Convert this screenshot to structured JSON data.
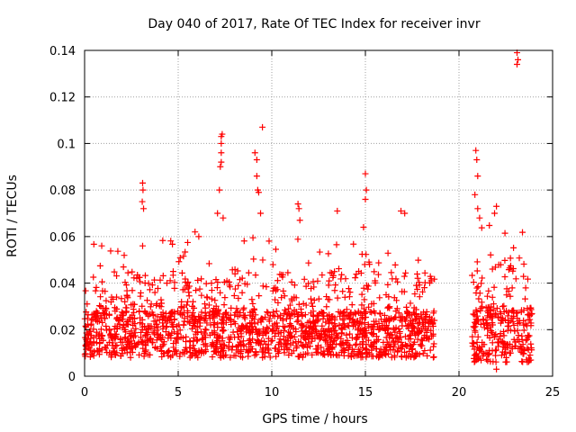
{
  "chart_data": {
    "type": "scatter",
    "title": "Day 040 of 2017, Rate Of TEC Index for receiver invr",
    "xlabel": "GPS time / hours",
    "ylabel": "ROTI / TECUs",
    "xlim": [
      0,
      25
    ],
    "ylim": [
      0,
      0.14
    ],
    "x_ticks": [
      0,
      5,
      10,
      15,
      20,
      25
    ],
    "x_tick_labels": [
      "0",
      "5",
      "10",
      "15",
      "20",
      "25"
    ],
    "y_ticks": [
      0,
      0.02,
      0.04,
      0.06,
      0.08,
      0.1,
      0.12,
      0.14
    ],
    "y_tick_labels": [
      "0",
      "0.02",
      "0.04",
      "0.06",
      "0.08",
      "0.1",
      "0.12",
      "0.14"
    ],
    "grid": true,
    "marker": "+",
    "series": [
      {
        "name": "ROTI",
        "color": "#ff0000",
        "segments": [
          {
            "x_start": 0.0,
            "x_end": 18.7,
            "base_low": 0.008,
            "base_high": 0.028,
            "typical_max": 0.045
          },
          {
            "x_start": 20.7,
            "x_end": 23.9,
            "base_low": 0.006,
            "base_high": 0.03,
            "typical_max": 0.05
          }
        ],
        "notable_points": [
          {
            "x": 3.1,
            "y": 0.083
          },
          {
            "x": 3.12,
            "y": 0.08
          },
          {
            "x": 3.08,
            "y": 0.075
          },
          {
            "x": 3.15,
            "y": 0.072
          },
          {
            "x": 3.1,
            "y": 0.056
          },
          {
            "x": 5.9,
            "y": 0.062
          },
          {
            "x": 6.1,
            "y": 0.06
          },
          {
            "x": 7.1,
            "y": 0.07
          },
          {
            "x": 7.2,
            "y": 0.08
          },
          {
            "x": 7.25,
            "y": 0.09
          },
          {
            "x": 7.3,
            "y": 0.092
          },
          {
            "x": 7.3,
            "y": 0.096
          },
          {
            "x": 7.3,
            "y": 0.1
          },
          {
            "x": 7.3,
            "y": 0.103
          },
          {
            "x": 7.35,
            "y": 0.104
          },
          {
            "x": 7.4,
            "y": 0.068
          },
          {
            "x": 9.1,
            "y": 0.096
          },
          {
            "x": 9.2,
            "y": 0.093
          },
          {
            "x": 9.2,
            "y": 0.086
          },
          {
            "x": 9.25,
            "y": 0.08
          },
          {
            "x": 9.3,
            "y": 0.079
          },
          {
            "x": 9.4,
            "y": 0.07
          },
          {
            "x": 9.5,
            "y": 0.107
          },
          {
            "x": 11.4,
            "y": 0.074
          },
          {
            "x": 11.45,
            "y": 0.072
          },
          {
            "x": 11.5,
            "y": 0.067
          },
          {
            "x": 13.5,
            "y": 0.071
          },
          {
            "x": 15.0,
            "y": 0.087
          },
          {
            "x": 15.05,
            "y": 0.08
          },
          {
            "x": 15.0,
            "y": 0.076
          },
          {
            "x": 14.9,
            "y": 0.064
          },
          {
            "x": 16.9,
            "y": 0.071
          },
          {
            "x": 17.1,
            "y": 0.07
          },
          {
            "x": 20.9,
            "y": 0.097
          },
          {
            "x": 20.95,
            "y": 0.093
          },
          {
            "x": 21.0,
            "y": 0.086
          },
          {
            "x": 20.85,
            "y": 0.078
          },
          {
            "x": 21.0,
            "y": 0.072
          },
          {
            "x": 21.1,
            "y": 0.068
          },
          {
            "x": 22.0,
            "y": 0.073
          },
          {
            "x": 21.9,
            "y": 0.07
          },
          {
            "x": 22.0,
            "y": 0.003
          },
          {
            "x": 23.1,
            "y": 0.139
          },
          {
            "x": 23.15,
            "y": 0.136
          },
          {
            "x": 23.1,
            "y": 0.134
          }
        ]
      }
    ]
  }
}
